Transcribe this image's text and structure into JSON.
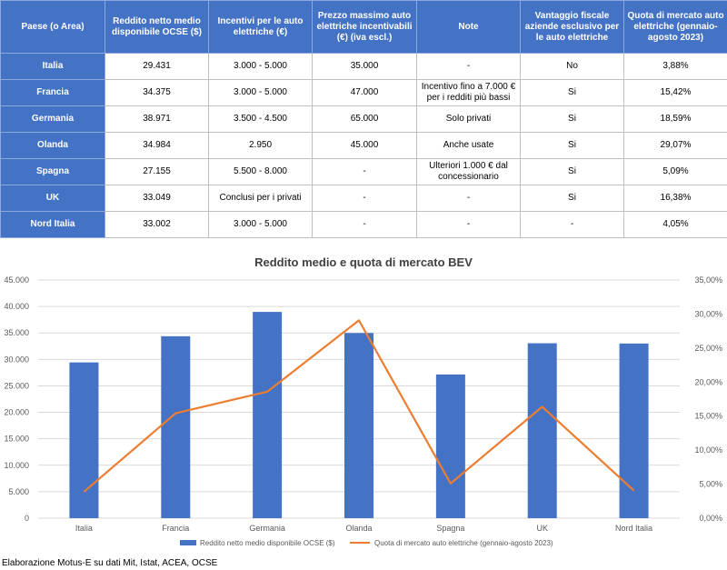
{
  "table": {
    "headers": [
      "Paese (o Area)",
      "Reddito netto medio disponibile OCSE ($)",
      "Incentivi per le auto elettriche (€)",
      "Prezzo massimo auto elettriche incentivabili (€) (iva escl.)",
      "Note",
      "Vantaggio fiscale aziende esclusivo per le auto elettriche",
      "Quota di mercato auto elettriche (gennaio-agosto 2023)"
    ],
    "rows": [
      [
        "Italia",
        "29.431",
        "3.000 - 5.000",
        "35.000",
        "-",
        "No",
        "3,88%"
      ],
      [
        "Francia",
        "34.375",
        "3.000 - 5.000",
        "47.000",
        "Incentivo fino a 7.000 € per i redditi più bassi",
        "Si",
        "15,42%"
      ],
      [
        "Germania",
        "38.971",
        "3.500 - 4.500",
        "65.000",
        "Solo privati",
        "Si",
        "18,59%"
      ],
      [
        "Olanda",
        "34.984",
        "2.950",
        "45.000",
        "Anche usate",
        "Si",
        "29,07%"
      ],
      [
        "Spagna",
        "27.155",
        "5.500 - 8.000",
        "-",
        "Ulteriori 1.000 € dal concessionario",
        "Si",
        "5,09%"
      ],
      [
        "UK",
        "33.049",
        "Conclusi per i privati",
        "-",
        "-",
        "Si",
        "16,38%"
      ],
      [
        "Nord Italia",
        "33.002",
        "3.000 - 5.000",
        "-",
        "-",
        "-",
        "4,05%"
      ]
    ]
  },
  "chart_data": {
    "type": "bar",
    "title": "Reddito medio  e quota di mercato BEV",
    "categories": [
      "Italia",
      "Francia",
      "Germania",
      "Olanda",
      "Spagna",
      "UK",
      "Nord Italia"
    ],
    "series": [
      {
        "name": "Reddito netto medio disponibile OCSE ($)",
        "type": "bar",
        "axis": "left",
        "values": [
          29431,
          34375,
          38971,
          34984,
          27155,
          33049,
          33002
        ],
        "color": "#4472c4"
      },
      {
        "name": "Quota di mercato auto elettriche (gennaio-agosto 2023)",
        "type": "line",
        "axis": "right",
        "values": [
          3.88,
          15.42,
          18.59,
          29.07,
          5.09,
          16.38,
          4.05
        ],
        "color": "#ed7d31"
      }
    ],
    "y_left": {
      "min": 0,
      "max": 45000,
      "step": 5000,
      "tick_labels": [
        "0",
        "5.000",
        "10.000",
        "15.000",
        "20.000",
        "25.000",
        "30.000",
        "35.000",
        "40.000",
        "45.000"
      ]
    },
    "y_right": {
      "min": 0,
      "max": 35,
      "step": 5,
      "tick_labels": [
        "0,00%",
        "5,00%",
        "10,00%",
        "15,00%",
        "20,00%",
        "25,00%",
        "30,00%",
        "35,00%"
      ]
    },
    "grid": true,
    "legend_position": "bottom"
  },
  "source_note": "Elaborazione Motus-E su dati Mit, Istat, ACEA, OCSE"
}
